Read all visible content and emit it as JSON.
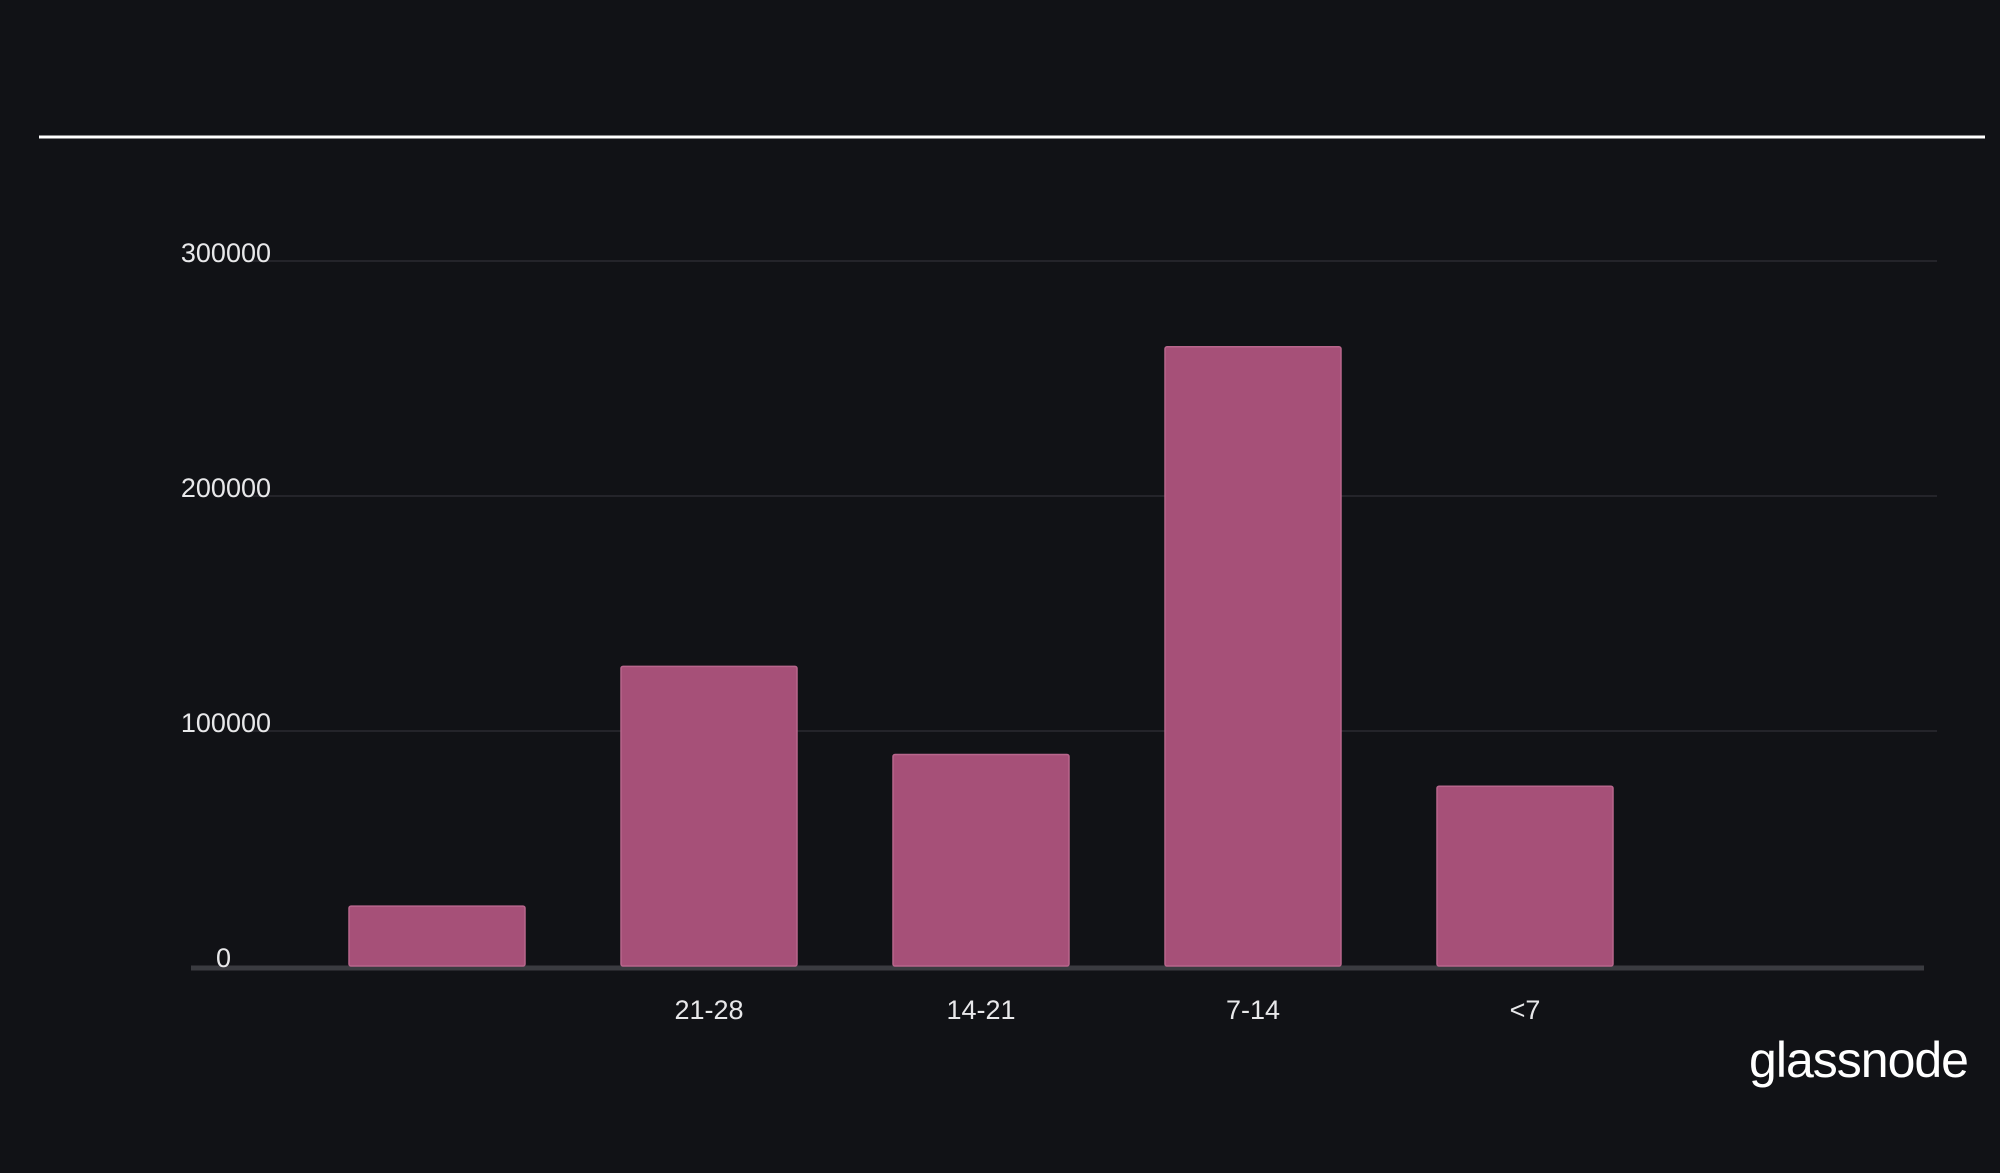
{
  "chart_data": {
    "type": "bar",
    "categories": [
      null,
      "21-28",
      "14-21",
      "7-14",
      "<7"
    ],
    "values": [
      25500,
      127500,
      90000,
      263500,
      76500
    ],
    "color": "#a65078",
    "ylim": [
      0,
      300000
    ],
    "yticks": [
      0,
      100000,
      200000,
      300000
    ],
    "grid": true,
    "brand": "glassnode"
  }
}
